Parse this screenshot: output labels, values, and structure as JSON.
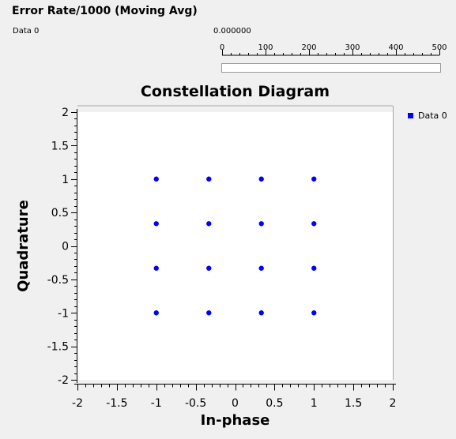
{
  "header": {
    "title": "Error Rate/1000 (Moving Avg)",
    "series_label": "Data 0",
    "rate_value": "0.000000"
  },
  "rate_scale": {
    "ticks": [
      "0",
      "100",
      "200",
      "300",
      "400",
      "500"
    ],
    "min": 0,
    "max": 500,
    "progress_fraction": 0
  },
  "chart_data": {
    "type": "scatter",
    "title": "Constellation Diagram",
    "xlabel": "In-phase",
    "ylabel": "Quadrature",
    "xlim": [
      -2,
      2
    ],
    "ylim": [
      -2,
      2
    ],
    "xticks": [
      "-2",
      "-1.5",
      "-1",
      "-0.5",
      "0",
      "0.5",
      "1",
      "1.5",
      "2"
    ],
    "yticks": [
      "2",
      "1.5",
      "1",
      "0.5",
      "0",
      "-0.5",
      "-1",
      "-1.5",
      "-2"
    ],
    "grid": false,
    "legend_placement": "top-right",
    "series": [
      {
        "name": "Data 0",
        "color": "#0000ff",
        "points": [
          [
            -1,
            1
          ],
          [
            -0.333,
            1
          ],
          [
            0.333,
            1
          ],
          [
            1,
            1
          ],
          [
            -1,
            0.333
          ],
          [
            -0.333,
            0.333
          ],
          [
            0.333,
            0.333
          ],
          [
            1,
            0.333
          ],
          [
            -1,
            -0.333
          ],
          [
            -0.333,
            -0.333
          ],
          [
            0.333,
            -0.333
          ],
          [
            1,
            -0.333
          ],
          [
            -1,
            -1
          ],
          [
            -0.333,
            -1
          ],
          [
            0.333,
            -1
          ],
          [
            1,
            -1
          ]
        ]
      }
    ]
  }
}
